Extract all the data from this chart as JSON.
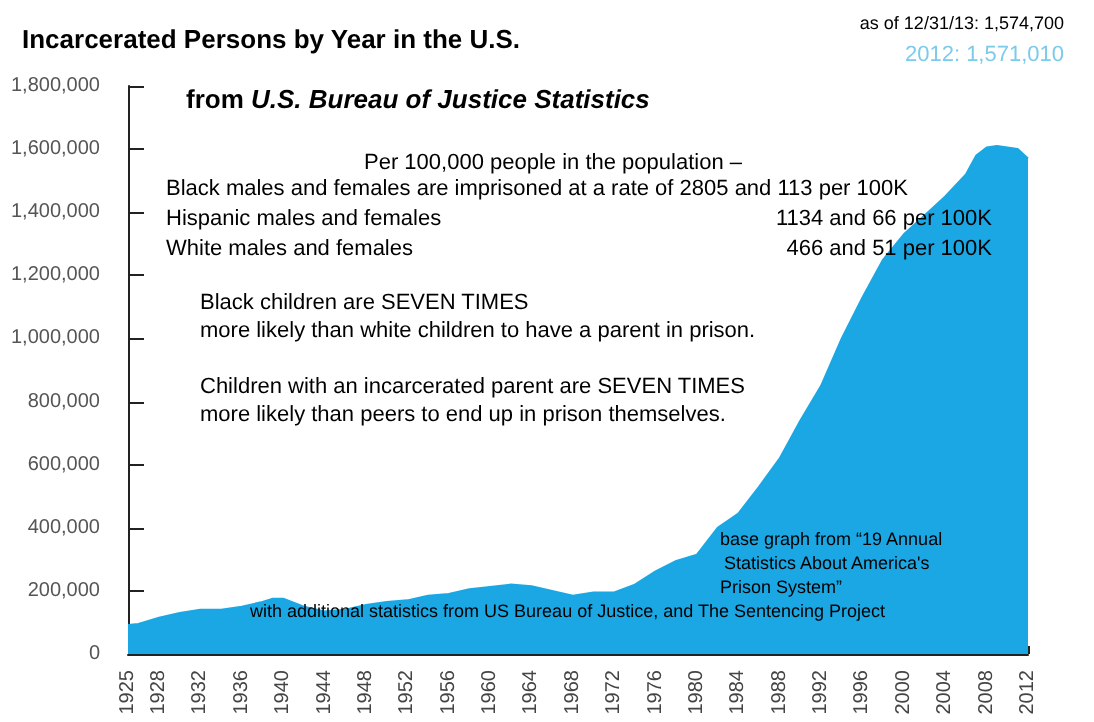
{
  "chart_data": {
    "type": "area",
    "title": "Incarcerated Persons by Year in the U.S.",
    "subtitle": "from U.S. Bureau of Justice Statistics",
    "annotations": [
      "as of 12/31/13: 1,574,700",
      "2012: 1,571,010",
      "Per 100,000 people in the population –",
      "Black males and females are imprisoned at a rate of 2805 and 113 per 100K",
      "Hispanic males and females",
      "1134 and 66 per 100K",
      "White males and females",
      "466 and 51 per 100K",
      "Black children are SEVEN TIMES",
      "more likely than white children to have a parent in prison.",
      "Children with an incarcerated parent are SEVEN TIMES",
      "more likely than peers to end up in prison themselves.",
      "base graph from “19 Annual",
      "Statistics About America's",
      "Prison System”",
      "with additional statistics from US Bureau of Justice, and The Sentencing Project"
    ],
    "x": [
      1925,
      1926,
      1928,
      1930,
      1932,
      1934,
      1936,
      1938,
      1939,
      1940,
      1942,
      1944,
      1946,
      1948,
      1950,
      1952,
      1954,
      1956,
      1958,
      1960,
      1962,
      1964,
      1966,
      1968,
      1970,
      1972,
      1974,
      1976,
      1978,
      1980,
      1982,
      1984,
      1986,
      1988,
      1990,
      1992,
      1994,
      1996,
      1998,
      2000,
      2002,
      2004,
      2006,
      2007,
      2008,
      2009,
      2010,
      2011,
      2012
    ],
    "series": [
      {
        "color": "#1aa7e4",
        "values": [
          92000,
          95000,
          115000,
          130000,
          140000,
          140000,
          150000,
          165000,
          175000,
          175000,
          150000,
          135000,
          140000,
          155000,
          165000,
          170000,
          185000,
          190000,
          205000,
          212000,
          220000,
          215000,
          200000,
          185000,
          195000,
          195000,
          220000,
          262000,
          295000,
          315000,
          400000,
          445000,
          530000,
          620000,
          740000,
          850000,
          1000000,
          1130000,
          1250000,
          1330000,
          1390000,
          1450000,
          1520000,
          1580000,
          1605000,
          1610000,
          1605000,
          1600000,
          1570000
        ]
      }
    ],
    "xlim": [
      1925,
      2012
    ],
    "xticks": [
      1925,
      1928,
      1932,
      1936,
      1940,
      1944,
      1948,
      1952,
      1956,
      1960,
      1964,
      1968,
      1972,
      1976,
      1980,
      1984,
      1988,
      1992,
      1996,
      2000,
      2004,
      2008,
      2012
    ],
    "ylim": [
      0,
      1800000
    ],
    "yticks": [
      0,
      {
        "value": 200000,
        "label": "200,000"
      },
      {
        "value": 400000,
        "label": "400,000"
      },
      {
        "value": 600000,
        "label": "600,000"
      },
      {
        "value": 800000,
        "label": "800,000"
      },
      {
        "value": 1000000,
        "label": "1,000,000"
      },
      {
        "value": 1200000,
        "label": "1,200,000"
      },
      {
        "value": 1400000,
        "label": "1,400,000"
      },
      {
        "value": 1600000,
        "label": "1,600,000"
      },
      {
        "value": 1800000,
        "label": "1,800,000"
      }
    ],
    "grid": false,
    "marker": "none"
  }
}
